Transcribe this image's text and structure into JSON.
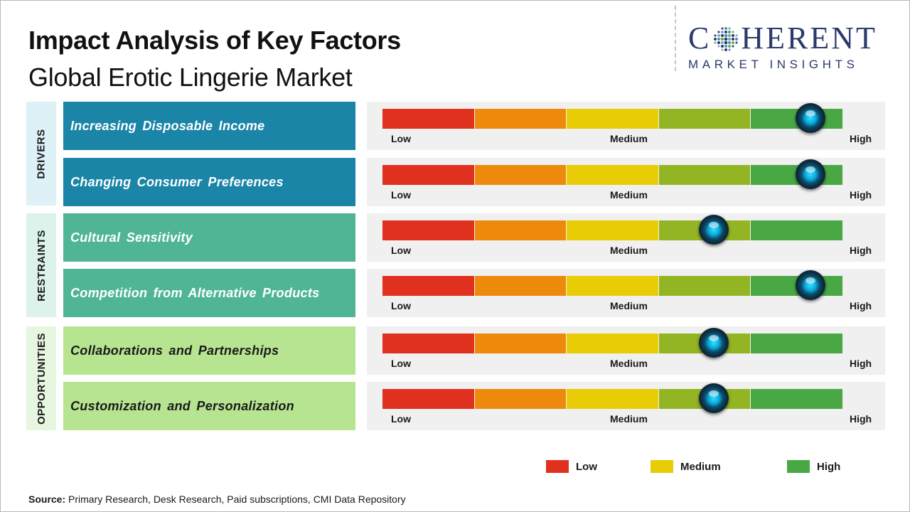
{
  "header": {
    "title": "Impact Analysis of Key Factors",
    "subtitle": "Global Erotic Lingerie Market"
  },
  "logo": {
    "word_top": "COHERENT",
    "word_top_left": "C",
    "word_top_right": "HERENT",
    "word_bottom": "MARKET INSIGHTS"
  },
  "scale": {
    "low": "Low",
    "medium": "Medium",
    "high": "High",
    "segment_colors": [
      "#e0301e",
      "#ee8a0b",
      "#e8cc06",
      "#93b524",
      "#49a844"
    ]
  },
  "chart_data": {
    "type": "gauge",
    "scale_levels": [
      "Low",
      "Medium",
      "High"
    ],
    "value_range": [
      0,
      5
    ],
    "groups": [
      {
        "name": "DRIVERS",
        "label_bg": "#ddf1f7",
        "factor_bg": "#1b85a8",
        "text_color": "#ffffff",
        "factors": [
          {
            "label": "Increasing Disposable Income",
            "impact": 4.65
          },
          {
            "label": "Changing Consumer Preferences",
            "impact": 4.65
          }
        ]
      },
      {
        "name": "RESTRAINTS",
        "label_bg": "#dcf2ea",
        "factor_bg": "#50b597",
        "text_color": "#ffffff",
        "factors": [
          {
            "label": "Cultural Sensitivity",
            "impact": 3.6
          },
          {
            "label": "Competition from Alternative Products",
            "impact": 4.65
          }
        ]
      },
      {
        "name": "OPPORTUNITIES",
        "label_bg": "#e7f6df",
        "factor_bg": "#b6e490",
        "text_color": "#1a1a1a",
        "factors": [
          {
            "label": "Collaborations and Partnerships",
            "impact": 3.6
          },
          {
            "label": "Customization and Personalization",
            "impact": 3.6
          }
        ]
      }
    ],
    "legend": [
      {
        "label": "Low",
        "color": "#e0301e"
      },
      {
        "label": "Medium",
        "color": "#e8cc06"
      },
      {
        "label": "High",
        "color": "#49a844"
      }
    ]
  },
  "footer": {
    "source_label": "Source:",
    "source_text": " Primary Research, Desk Research, Paid subscriptions, CMI Data Repository"
  }
}
